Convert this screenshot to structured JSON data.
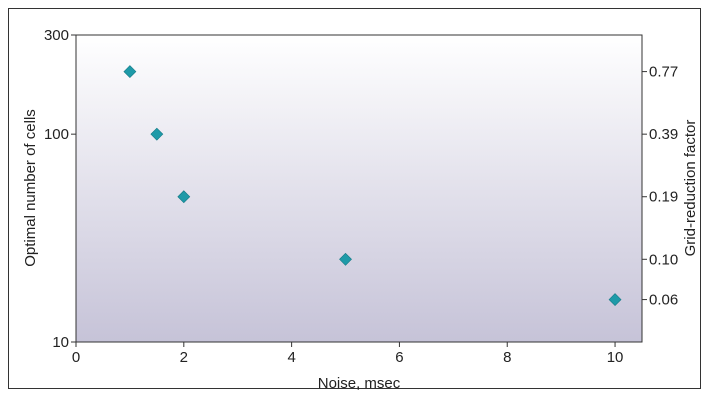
{
  "chart_data": {
    "type": "scatter",
    "title": "",
    "xlabel": "Noise, msec",
    "ylabel": "Optimal number of cells",
    "y2label": "Grid-reduction factor",
    "xlim": [
      0,
      10.5
    ],
    "ylim": [
      10,
      300
    ],
    "yscale": "log",
    "x_ticks": [
      "0",
      "2",
      "4",
      "6",
      "8",
      "10"
    ],
    "y_ticks": [
      "10",
      "100",
      "300"
    ],
    "y2_ticks": [
      "0.77",
      "0.39",
      "0.19",
      "0.10",
      "0.06"
    ],
    "grid": false,
    "legend": "none",
    "marker": "diamond",
    "marker_color": "#1e9aa8",
    "background_gradient": [
      "#ffffff",
      "#c6c3d8"
    ],
    "points": [
      {
        "x": 1,
        "y": 200
      },
      {
        "x": 1.5,
        "y": 100
      },
      {
        "x": 2,
        "y": 50
      },
      {
        "x": 5,
        "y": 25
      },
      {
        "x": 10,
        "y": 16
      }
    ]
  }
}
